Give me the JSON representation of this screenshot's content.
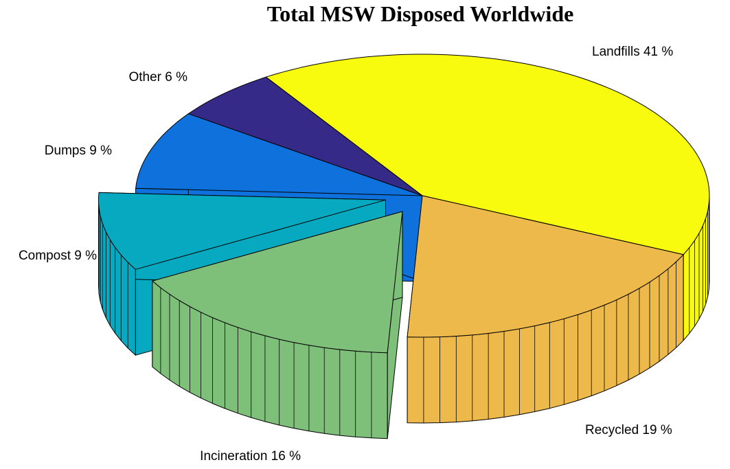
{
  "chart_data": {
    "type": "pie",
    "style": "3d-exploded",
    "title": "Total MSW Disposed Worldwide",
    "start_direction": "clockwise from top-left (Landfills first)",
    "slices": [
      {
        "name": "Landfills",
        "value": 41,
        "label": "Landfills 41 %",
        "color": "#F9FB0E",
        "exploded": false
      },
      {
        "name": "Recycled",
        "value": 19,
        "label": "Recycled 19 %",
        "color": "#EDB94B",
        "exploded": false
      },
      {
        "name": "Incineration",
        "value": 16,
        "label": "Incineration 16 %",
        "color": "#7EBF7A",
        "exploded": true
      },
      {
        "name": "Compost",
        "value": 9,
        "label": "Compost 9 %",
        "color": "#07A9C1",
        "exploded": true
      },
      {
        "name": "Dumps",
        "value": 9,
        "label": "Dumps 9 %",
        "color": "#0F72DC",
        "exploded": false
      },
      {
        "name": "Other",
        "value": 6,
        "label": "Other 6 %",
        "color": "#352A87",
        "exploded": false
      }
    ]
  }
}
